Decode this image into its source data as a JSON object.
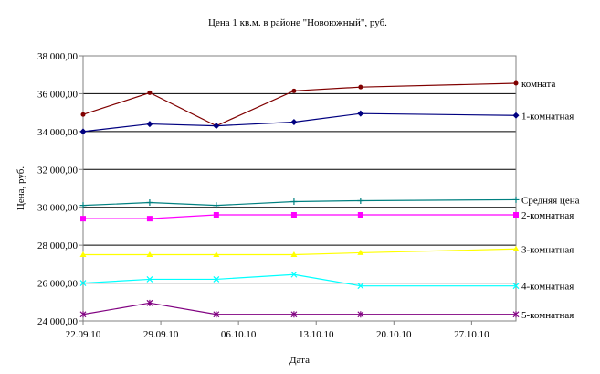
{
  "chart_data": {
    "type": "line",
    "title": "Цена 1 кв.м. в районе \"Новоюжный\", руб.",
    "xlabel": "Дата",
    "ylabel": "Цена, руб.",
    "ylim": [
      24000,
      38000
    ],
    "yticks": [
      24000,
      26000,
      28000,
      30000,
      32000,
      34000,
      36000,
      38000
    ],
    "ytick_labels": [
      "24 000,00",
      "26 000,00",
      "28 000,00",
      "30 000,00",
      "32 000,00",
      "34 000,00",
      "36 000,00",
      "38 000,00"
    ],
    "xlim": [
      "2010-09-22",
      "2010-10-31"
    ],
    "xticks": [
      "2010-09-22",
      "2010-09-29",
      "2010-10-06",
      "2010-10-13",
      "2010-10-20",
      "2010-10-27"
    ],
    "xtick_labels": [
      "22.09.10",
      "29.09.10",
      "06.10.10",
      "13.10.10",
      "20.10.10",
      "27.10.10"
    ],
    "x": [
      "2010-09-22",
      "2010-09-28",
      "2010-10-04",
      "2010-10-11",
      "2010-10-17",
      "2010-10-31"
    ],
    "grid": true,
    "legend": "right, labels at line ends",
    "series": [
      {
        "name": "комната",
        "color": "#800000",
        "marker": "circle",
        "values": [
          34900,
          36050,
          34300,
          36150,
          36350,
          36550
        ]
      },
      {
        "name": "1-комнатная",
        "color": "#000080",
        "marker": "diamond",
        "values": [
          34000,
          34400,
          34300,
          34500,
          34950,
          34850
        ]
      },
      {
        "name": "Средняя цена",
        "color": "#008080",
        "marker": "plus",
        "values": [
          30100,
          30250,
          30100,
          30300,
          30350,
          30400
        ]
      },
      {
        "name": "2-комнатная",
        "color": "#ff00ff",
        "marker": "square",
        "values": [
          29400,
          29400,
          29600,
          29600,
          29600,
          29600
        ]
      },
      {
        "name": "3-комнатная",
        "color": "#ffff00",
        "marker": "triangle",
        "values": [
          27500,
          27500,
          27500,
          27500,
          27600,
          27800
        ]
      },
      {
        "name": "4-комнатная",
        "color": "#00ffff",
        "marker": "x",
        "values": [
          26000,
          26200,
          26200,
          26450,
          25850,
          25850
        ]
      },
      {
        "name": "5-комнатная",
        "color": "#800080",
        "marker": "star",
        "values": [
          24350,
          24950,
          24350,
          24350,
          24350,
          24350
        ]
      }
    ]
  }
}
